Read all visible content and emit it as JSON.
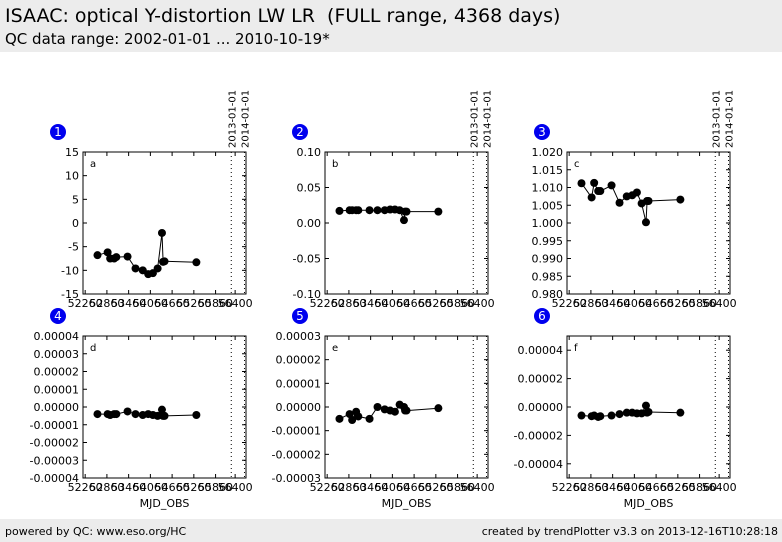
{
  "header": {
    "title": "ISAAC: optical Y-distortion LW LR  (FULL range, 4368 days)",
    "subtitle": "QC data range: 2002-01-01 ... 2010-10-19*"
  },
  "footer": {
    "left": "powered by QC: www.eso.org/HC",
    "right": "created by trendPlotter v3.3 on 2013-12-16T10:28:18"
  },
  "colors": {
    "badge": "#0000ee",
    "header_bg": "#ececec",
    "series": "#000000"
  },
  "chart_data": [
    {
      "type": "line",
      "badge": "1",
      "letter": "a",
      "xlabel": "",
      "xlim": [
        52200,
        56700
      ],
      "ylim": [
        -15,
        15
      ],
      "xticks": [
        "52260",
        "52860",
        "53460",
        "54060",
        "54660",
        "55260",
        "55860",
        "56400"
      ],
      "yticks": [
        "15",
        "10",
        "5",
        "0",
        "-5",
        "-10",
        "-15"
      ],
      "vlines": [
        {
          "x": 56293,
          "label": "2013-01-01"
        },
        {
          "x": 56658,
          "label": "2014-01-01"
        }
      ],
      "x": [
        52600,
        52880,
        52950,
        53060,
        53120,
        53430,
        53650,
        53850,
        54000,
        54130,
        54260,
        54380,
        54410,
        54450,
        55330
      ],
      "y": [
        -6.8,
        -6.2,
        -7.5,
        -7.5,
        -7.2,
        -7.1,
        -9.6,
        -10,
        -10.8,
        -10.6,
        -9.6,
        -2.1,
        -8.2,
        -8.1,
        -8.3
      ]
    },
    {
      "type": "line",
      "badge": "2",
      "letter": "b",
      "xlabel": "",
      "xlim": [
        52200,
        56700
      ],
      "ylim": [
        -0.1,
        0.1
      ],
      "xticks": [
        "52260",
        "52860",
        "53460",
        "54060",
        "54660",
        "55260",
        "55860",
        "56400"
      ],
      "yticks": [
        "0.10",
        "0.05",
        "0.00",
        "-0.05",
        "-0.10"
      ],
      "vlines": [
        {
          "x": 56293,
          "label": "2013-01-01"
        },
        {
          "x": 56658,
          "label": "2014-01-01"
        }
      ],
      "x": [
        52600,
        52880,
        52950,
        53060,
        53120,
        53430,
        53650,
        53850,
        54000,
        54130,
        54260,
        54380,
        54410,
        54450,
        55330
      ],
      "y": [
        0.017,
        0.018,
        0.018,
        0.018,
        0.018,
        0.018,
        0.018,
        0.018,
        0.019,
        0.019,
        0.018,
        0.004,
        0.016,
        0.016,
        0.016
      ]
    },
    {
      "type": "line",
      "badge": "3",
      "letter": "c",
      "xlabel": "",
      "xlim": [
        52200,
        56700
      ],
      "ylim": [
        0.98,
        1.02
      ],
      "xticks": [
        "52260",
        "52860",
        "53460",
        "54060",
        "54660",
        "55260",
        "55860",
        "56400"
      ],
      "yticks": [
        "1.020",
        "1.015",
        "1.010",
        "1.005",
        "1.000",
        "0.995",
        "0.990",
        "0.985",
        "0.980"
      ],
      "vlines": [
        {
          "x": 56293,
          "label": "2013-01-01"
        },
        {
          "x": 56658,
          "label": "2014-01-01"
        }
      ],
      "x": [
        52600,
        52880,
        52950,
        53060,
        53120,
        53430,
        53650,
        53850,
        54000,
        54130,
        54260,
        54380,
        54410,
        54450,
        55330
      ],
      "y": [
        1.0112,
        1.0072,
        1.0113,
        1.009,
        1.009,
        1.0106,
        1.0057,
        1.0075,
        1.0078,
        1.0086,
        1.0055,
        1.0002,
        1.0062,
        1.0062,
        1.0066
      ]
    },
    {
      "type": "line",
      "badge": "4",
      "letter": "d",
      "xlabel": "MJD_OBS",
      "xlim": [
        52200,
        56700
      ],
      "ylim": [
        -4e-05,
        4e-05
      ],
      "xticks": [
        "52260",
        "52860",
        "53460",
        "54060",
        "54660",
        "55260",
        "55860",
        "56400"
      ],
      "yticks": [
        "0.00004",
        "0.00003",
        "0.00002",
        "0.00001",
        "0.00000",
        "-0.00001",
        "-0.00002",
        "-0.00003",
        "-0.00004"
      ],
      "vlines": [
        {
          "x": 56293,
          "label": ""
        },
        {
          "x": 56658,
          "label": ""
        }
      ],
      "x": [
        52600,
        52880,
        52950,
        53060,
        53120,
        53430,
        53650,
        53850,
        54000,
        54130,
        54260,
        54380,
        54410,
        54450,
        55330
      ],
      "y": [
        -4e-06,
        -4e-06,
        -4.5e-06,
        -4e-06,
        -4e-06,
        -2.5e-06,
        -4e-06,
        -4.5e-06,
        -4e-06,
        -4.5e-06,
        -5e-06,
        -1.5e-06,
        -5e-06,
        -5e-06,
        -4.5e-06
      ]
    },
    {
      "type": "line",
      "badge": "5",
      "letter": "e",
      "xlabel": "MJD_OBS",
      "xlim": [
        52200,
        56700
      ],
      "ylim": [
        -3e-05,
        3e-05
      ],
      "xticks": [
        "52260",
        "52860",
        "53460",
        "54060",
        "54660",
        "55260",
        "55860",
        "56400"
      ],
      "yticks": [
        "0.00003",
        "0.00002",
        "0.00001",
        "0.00000",
        "-0.00001",
        "-0.00002",
        "-0.00003"
      ],
      "vlines": [
        {
          "x": 56293,
          "label": ""
        },
        {
          "x": 56658,
          "label": ""
        }
      ],
      "x": [
        52600,
        52880,
        52950,
        53060,
        53120,
        53430,
        53650,
        53850,
        54000,
        54130,
        54260,
        54380,
        54410,
        54450,
        55330
      ],
      "y": [
        -5e-06,
        -3e-06,
        -5.5e-06,
        -2e-06,
        -4e-06,
        -5e-06,
        0.0,
        -1e-06,
        -1.5e-06,
        -2e-06,
        1e-06,
        0.0,
        -1.5e-06,
        -1.5e-06,
        -5e-07
      ]
    },
    {
      "type": "line",
      "badge": "6",
      "letter": "f",
      "xlabel": "MJD_OBS",
      "xlim": [
        52200,
        56700
      ],
      "ylim": [
        -5e-05,
        5e-05
      ],
      "xticks": [
        "52260",
        "52860",
        "53460",
        "54060",
        "54660",
        "55260",
        "55860",
        "56400"
      ],
      "yticks": [
        "0.00004",
        "0.00002",
        "0.00000",
        "-0.00002",
        "-0.00004"
      ],
      "vlines": [
        {
          "x": 56293,
          "label": ""
        },
        {
          "x": 56658,
          "label": ""
        }
      ],
      "x": [
        52600,
        52880,
        52950,
        53060,
        53120,
        53430,
        53650,
        53850,
        54000,
        54130,
        54260,
        54380,
        54410,
        54450,
        55330
      ],
      "y": [
        -6e-06,
        -6.5e-06,
        -6e-06,
        -7e-06,
        -6.5e-06,
        -6e-06,
        -5e-06,
        -4e-06,
        -4e-06,
        -4.5e-06,
        -4.5e-06,
        1e-06,
        -4e-06,
        -3.5e-06,
        -4e-06
      ]
    }
  ]
}
